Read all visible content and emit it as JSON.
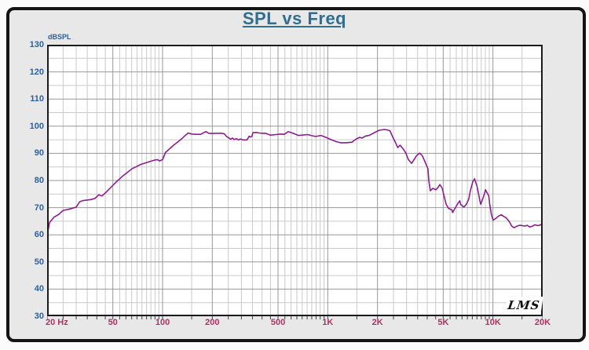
{
  "header": {
    "title": "SPL vs Freq",
    "title_color": "#2f6e91"
  },
  "chart": {
    "y_axis_unit": "dBSPL",
    "logo": "LMS",
    "colors": {
      "curve": "#8a1f8c",
      "y_labels": "#2e5f9b",
      "x_labels": "#aa3366",
      "grid_major": "#979797",
      "grid_minor": "#cacaca",
      "plot_border": "#1a1a1a",
      "plot_bg": "#ffffff",
      "page_bg": "#e8e8e8"
    }
  },
  "chart_data": {
    "type": "line",
    "title": "SPL vs Freq",
    "x_scale": "log",
    "xlim": [
      20,
      20000
    ],
    "ylim": [
      30,
      130
    ],
    "xlabel": "Hz",
    "ylabel": "dBSPL",
    "y_ticks": [
      130,
      120,
      110,
      100,
      90,
      80,
      70,
      60,
      50,
      40,
      30
    ],
    "x_ticks": [
      {
        "f": 20,
        "label": "20 Hz",
        "align": "left"
      },
      {
        "f": 50,
        "label": "50"
      },
      {
        "f": 100,
        "label": "100"
      },
      {
        "f": 200,
        "label": "200"
      },
      {
        "f": 500,
        "label": "500"
      },
      {
        "f": 1000,
        "label": "1K"
      },
      {
        "f": 2000,
        "label": "2K"
      },
      {
        "f": 5000,
        "label": "5K"
      },
      {
        "f": 10000,
        "label": "10K"
      },
      {
        "f": 20000,
        "label": "20K"
      }
    ],
    "y_grid_major": [
      40,
      50,
      60,
      70,
      80,
      90,
      100,
      110,
      120
    ],
    "y_grid_minor": [
      35,
      45,
      55,
      65,
      75,
      85,
      95,
      105,
      115,
      125
    ],
    "x_grid_major": [
      50,
      100,
      200,
      500,
      1000,
      2000,
      5000,
      10000,
      20000
    ],
    "x_grid_minor": [
      25,
      30,
      35,
      40,
      45,
      55,
      60,
      65,
      70,
      75,
      80,
      85,
      90,
      95,
      150,
      250,
      300,
      350,
      400,
      450,
      550,
      600,
      650,
      700,
      750,
      800,
      850,
      900,
      950,
      1500,
      2500,
      3000,
      3500,
      4000,
      4500,
      5500,
      6000,
      6500,
      7000,
      7500,
      8000,
      8500,
      9000,
      9500,
      15000
    ],
    "series": [
      {
        "name": "SPL",
        "color": "#8a1f8c",
        "points": [
          [
            20,
            59.8
          ],
          [
            20.7,
            64.5
          ],
          [
            22,
            66.5
          ],
          [
            23.5,
            67.5
          ],
          [
            25,
            69
          ],
          [
            27,
            69.4
          ],
          [
            28.5,
            69.8
          ],
          [
            30,
            70.2
          ],
          [
            31.5,
            72.2
          ],
          [
            33,
            72.6
          ],
          [
            35,
            72.8
          ],
          [
            37,
            73
          ],
          [
            39,
            73.4
          ],
          [
            41,
            74.7
          ],
          [
            43,
            74.3
          ],
          [
            45.5,
            75.7
          ],
          [
            49,
            77.7
          ],
          [
            52.5,
            79.5
          ],
          [
            57,
            81.5
          ],
          [
            61,
            82.9
          ],
          [
            65.5,
            84.4
          ],
          [
            69,
            85
          ],
          [
            73,
            85.8
          ],
          [
            78,
            86.4
          ],
          [
            83,
            86.9
          ],
          [
            89,
            87.5
          ],
          [
            93,
            87.7
          ],
          [
            96,
            87.2
          ],
          [
            100,
            87.7
          ],
          [
            104,
            90.3
          ],
          [
            110,
            91.6
          ],
          [
            116,
            92.9
          ],
          [
            122,
            93.9
          ],
          [
            129,
            95.1
          ],
          [
            136,
            96.4
          ],
          [
            143,
            97.5
          ],
          [
            150,
            97.1
          ],
          [
            160,
            97
          ],
          [
            170,
            97
          ],
          [
            177,
            97.6
          ],
          [
            183,
            98
          ],
          [
            190,
            97.4
          ],
          [
            200,
            97.3
          ],
          [
            215,
            97.4
          ],
          [
            228,
            97.4
          ],
          [
            236,
            97.2
          ],
          [
            244,
            96.2
          ],
          [
            252,
            95.7
          ],
          [
            258,
            95.2
          ],
          [
            265,
            95.6
          ],
          [
            272,
            95.1
          ],
          [
            280,
            95.4
          ],
          [
            288,
            94.9
          ],
          [
            296,
            95.3
          ],
          [
            305,
            95
          ],
          [
            315,
            94.9
          ],
          [
            325,
            95
          ],
          [
            334,
            96.3
          ],
          [
            340,
            96
          ],
          [
            347,
            96.2
          ],
          [
            352,
            97.6
          ],
          [
            368,
            97.7
          ],
          [
            385,
            97.5
          ],
          [
            400,
            97.4
          ],
          [
            420,
            97.4
          ],
          [
            450,
            96.7
          ],
          [
            485,
            96.9
          ],
          [
            520,
            97.1
          ],
          [
            545,
            97
          ],
          [
            577,
            98
          ],
          [
            610,
            97.5
          ],
          [
            665,
            96.6
          ],
          [
            700,
            96.7
          ],
          [
            755,
            96.9
          ],
          [
            800,
            96.5
          ],
          [
            845,
            96.2
          ],
          [
            910,
            96.6
          ],
          [
            975,
            95.9
          ],
          [
            1025,
            95.3
          ],
          [
            1125,
            94.3
          ],
          [
            1195,
            93.9
          ],
          [
            1290,
            93.9
          ],
          [
            1400,
            94.1
          ],
          [
            1480,
            95.2
          ],
          [
            1560,
            95.9
          ],
          [
            1610,
            95.6
          ],
          [
            1695,
            96.4
          ],
          [
            1780,
            96.6
          ],
          [
            1860,
            97.2
          ],
          [
            1950,
            97.9
          ],
          [
            2050,
            98.5
          ],
          [
            2200,
            98.8
          ],
          [
            2300,
            98.6
          ],
          [
            2380,
            98.3
          ],
          [
            2460,
            96.3
          ],
          [
            2570,
            94
          ],
          [
            2650,
            92.1
          ],
          [
            2740,
            93
          ],
          [
            2870,
            91.5
          ],
          [
            2970,
            90.1
          ],
          [
            3075,
            87.7
          ],
          [
            3220,
            86.3
          ],
          [
            3330,
            87.7
          ],
          [
            3450,
            89.2
          ],
          [
            3600,
            90.1
          ],
          [
            3730,
            89.2
          ],
          [
            3860,
            87.2
          ],
          [
            4040,
            84.3
          ],
          [
            4090,
            80
          ],
          [
            4180,
            76.2
          ],
          [
            4330,
            77.1
          ],
          [
            4520,
            76.6
          ],
          [
            4670,
            77.6
          ],
          [
            4770,
            78.5
          ],
          [
            4930,
            77.1
          ],
          [
            5040,
            74.7
          ],
          [
            5210,
            71.2
          ],
          [
            5390,
            69.7
          ],
          [
            5640,
            69.2
          ],
          [
            5700,
            68.2
          ],
          [
            5950,
            70.2
          ],
          [
            6160,
            71.7
          ],
          [
            6300,
            72.5
          ],
          [
            6370,
            71.2
          ],
          [
            6660,
            70.2
          ],
          [
            6900,
            71.2
          ],
          [
            7140,
            73.2
          ],
          [
            7300,
            76.2
          ],
          [
            7550,
            79.5
          ],
          [
            7730,
            80.6
          ],
          [
            8000,
            78
          ],
          [
            8180,
            75.2
          ],
          [
            8350,
            72.3
          ],
          [
            8440,
            71.2
          ],
          [
            8900,
            75.2
          ],
          [
            9000,
            76.6
          ],
          [
            9440,
            74.3
          ],
          [
            9560,
            71.2
          ],
          [
            9800,
            67.4
          ],
          [
            10020,
            65.4
          ],
          [
            10400,
            66
          ],
          [
            10750,
            66.8
          ],
          [
            11240,
            67.4
          ],
          [
            11600,
            66.8
          ],
          [
            12000,
            66.3
          ],
          [
            12550,
            64.9
          ],
          [
            13000,
            63.2
          ],
          [
            13430,
            62.6
          ],
          [
            14000,
            63.2
          ],
          [
            14500,
            63.5
          ],
          [
            15000,
            63.4
          ],
          [
            15600,
            63.2
          ],
          [
            16100,
            63.5
          ],
          [
            16700,
            62.9
          ],
          [
            17400,
            63.2
          ],
          [
            17900,
            63.7
          ],
          [
            18500,
            63.4
          ],
          [
            19200,
            63.5
          ],
          [
            19800,
            64
          ],
          [
            20000,
            64.2
          ]
        ]
      }
    ]
  }
}
